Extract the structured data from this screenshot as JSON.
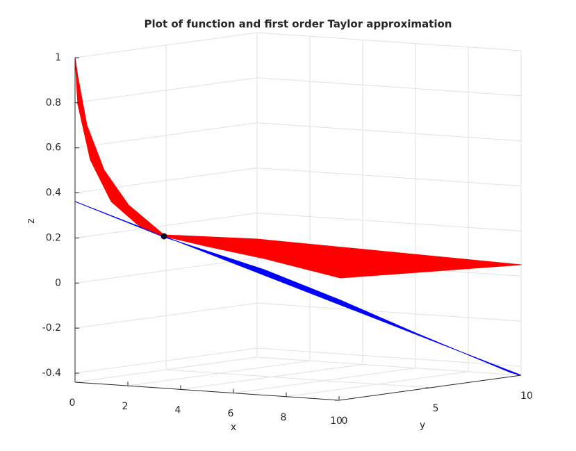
{
  "chart_data": {
    "type": "surface3d",
    "title": "Plot of function and first order Taylor approximation",
    "xlabel": "x",
    "ylabel": "y",
    "zlabel": "z",
    "xlim": [
      0,
      10
    ],
    "xticks": [
      0,
      2,
      4,
      6,
      8,
      10
    ],
    "ylim": [
      0,
      10
    ],
    "yticks": [
      0,
      5,
      10
    ],
    "zlim": [
      -0.44,
      1
    ],
    "zticks": [
      -0.4,
      -0.2,
      0,
      0.2,
      0.4,
      0.6,
      0.8,
      1
    ],
    "grid": true
  }
}
